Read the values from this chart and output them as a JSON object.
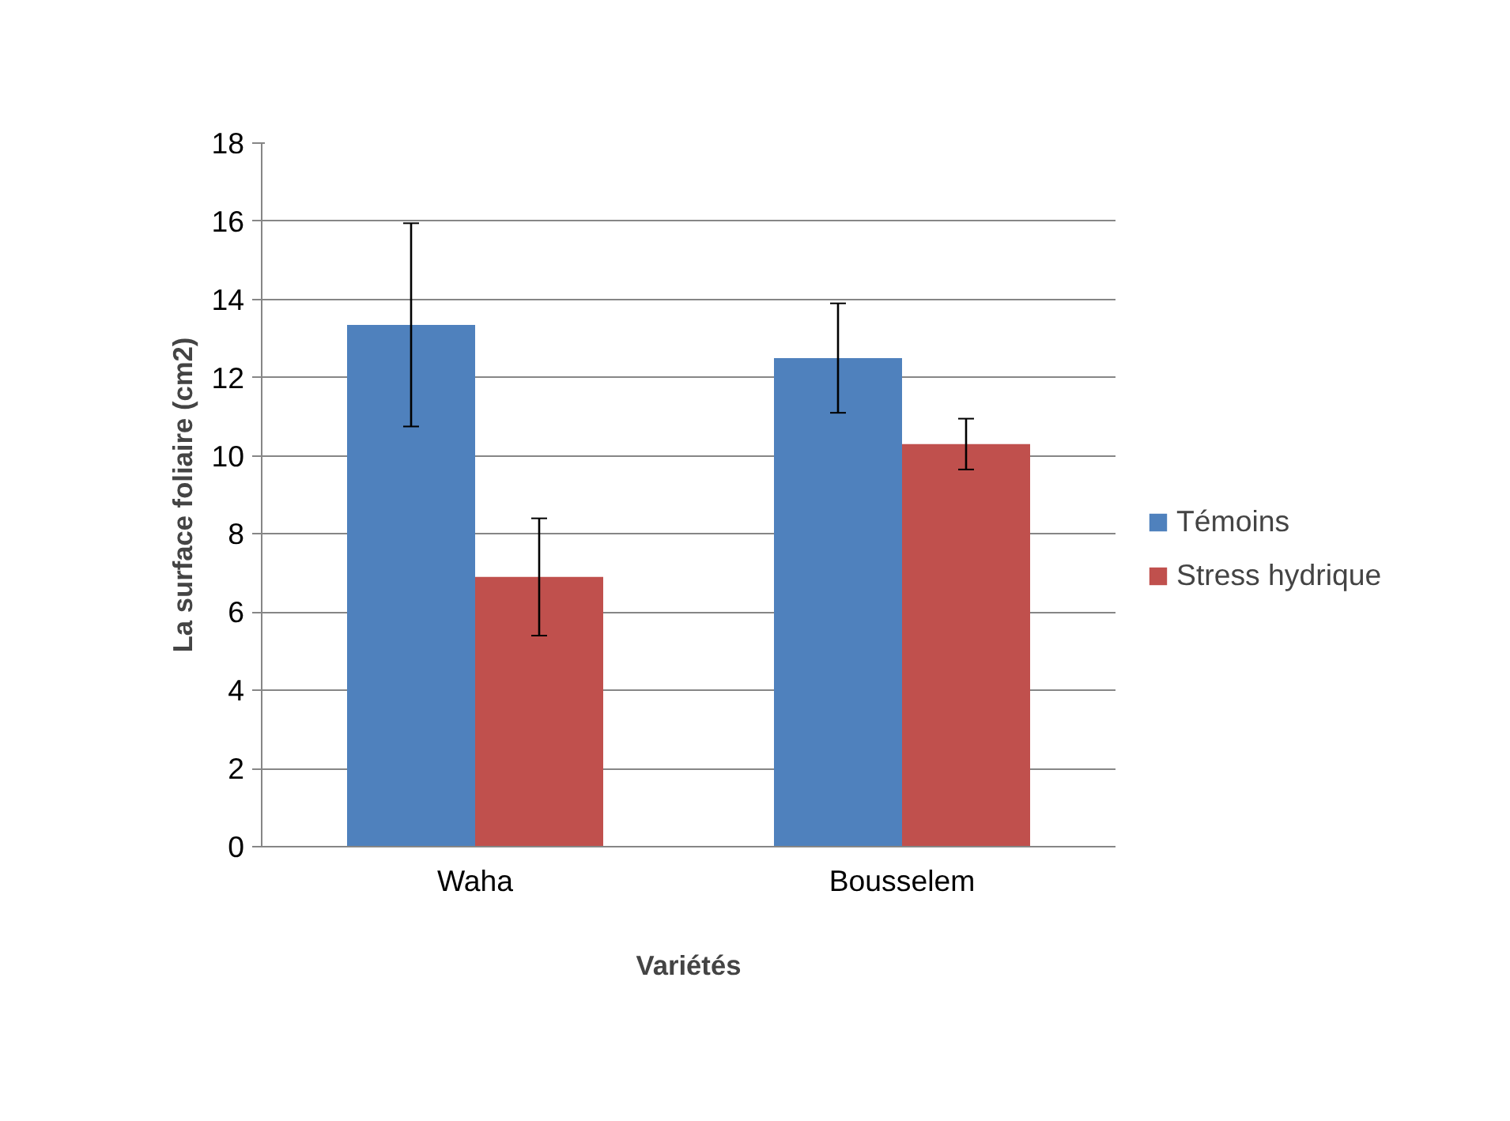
{
  "chart_data": {
    "type": "bar",
    "xlabel": "Variétés",
    "ylabel": "La surface foliaire (cm2)",
    "categories": [
      "Waha",
      "Bousselem"
    ],
    "series": [
      {
        "name": "Témoins",
        "color": "#4f81bd",
        "values": [
          13.35,
          12.5
        ],
        "errors": [
          2.6,
          1.4
        ]
      },
      {
        "name": "Stress hydrique",
        "color": "#c0504d",
        "values": [
          6.9,
          10.3
        ],
        "errors": [
          1.5,
          0.65
        ]
      }
    ],
    "ylim": [
      0,
      18
    ],
    "yticks": [
      0,
      2,
      4,
      6,
      8,
      10,
      12,
      14,
      16,
      18
    ],
    "grid": "y",
    "legend": "right"
  }
}
